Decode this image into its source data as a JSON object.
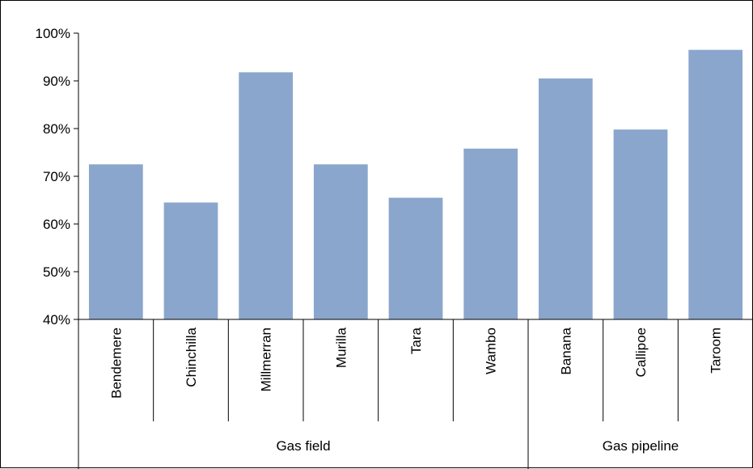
{
  "chart_data": {
    "type": "bar",
    "categories": [
      "Bendemere",
      "Chinchilla",
      "Millmerran",
      "Murilla",
      "Tara",
      "Wambo",
      "Banana",
      "Callipoe",
      "Taroom"
    ],
    "groups": [
      {
        "label": "Gas field",
        "count": 6
      },
      {
        "label": "Gas pipeline",
        "count": 3
      }
    ],
    "series": [
      {
        "values": [
          72.5,
          64.5,
          91.8,
          72.5,
          65.5,
          75.8,
          90.5,
          79.8,
          96.5
        ]
      }
    ],
    "ylim": [
      40,
      100
    ],
    "yticks": [
      40,
      50,
      60,
      70,
      80,
      90,
      100
    ],
    "ytick_labels": [
      "40%",
      "50%",
      "60%",
      "70%",
      "80%",
      "90%",
      "100%"
    ],
    "bar_color": "#8aa6cc",
    "grid": false,
    "legend": "none"
  }
}
